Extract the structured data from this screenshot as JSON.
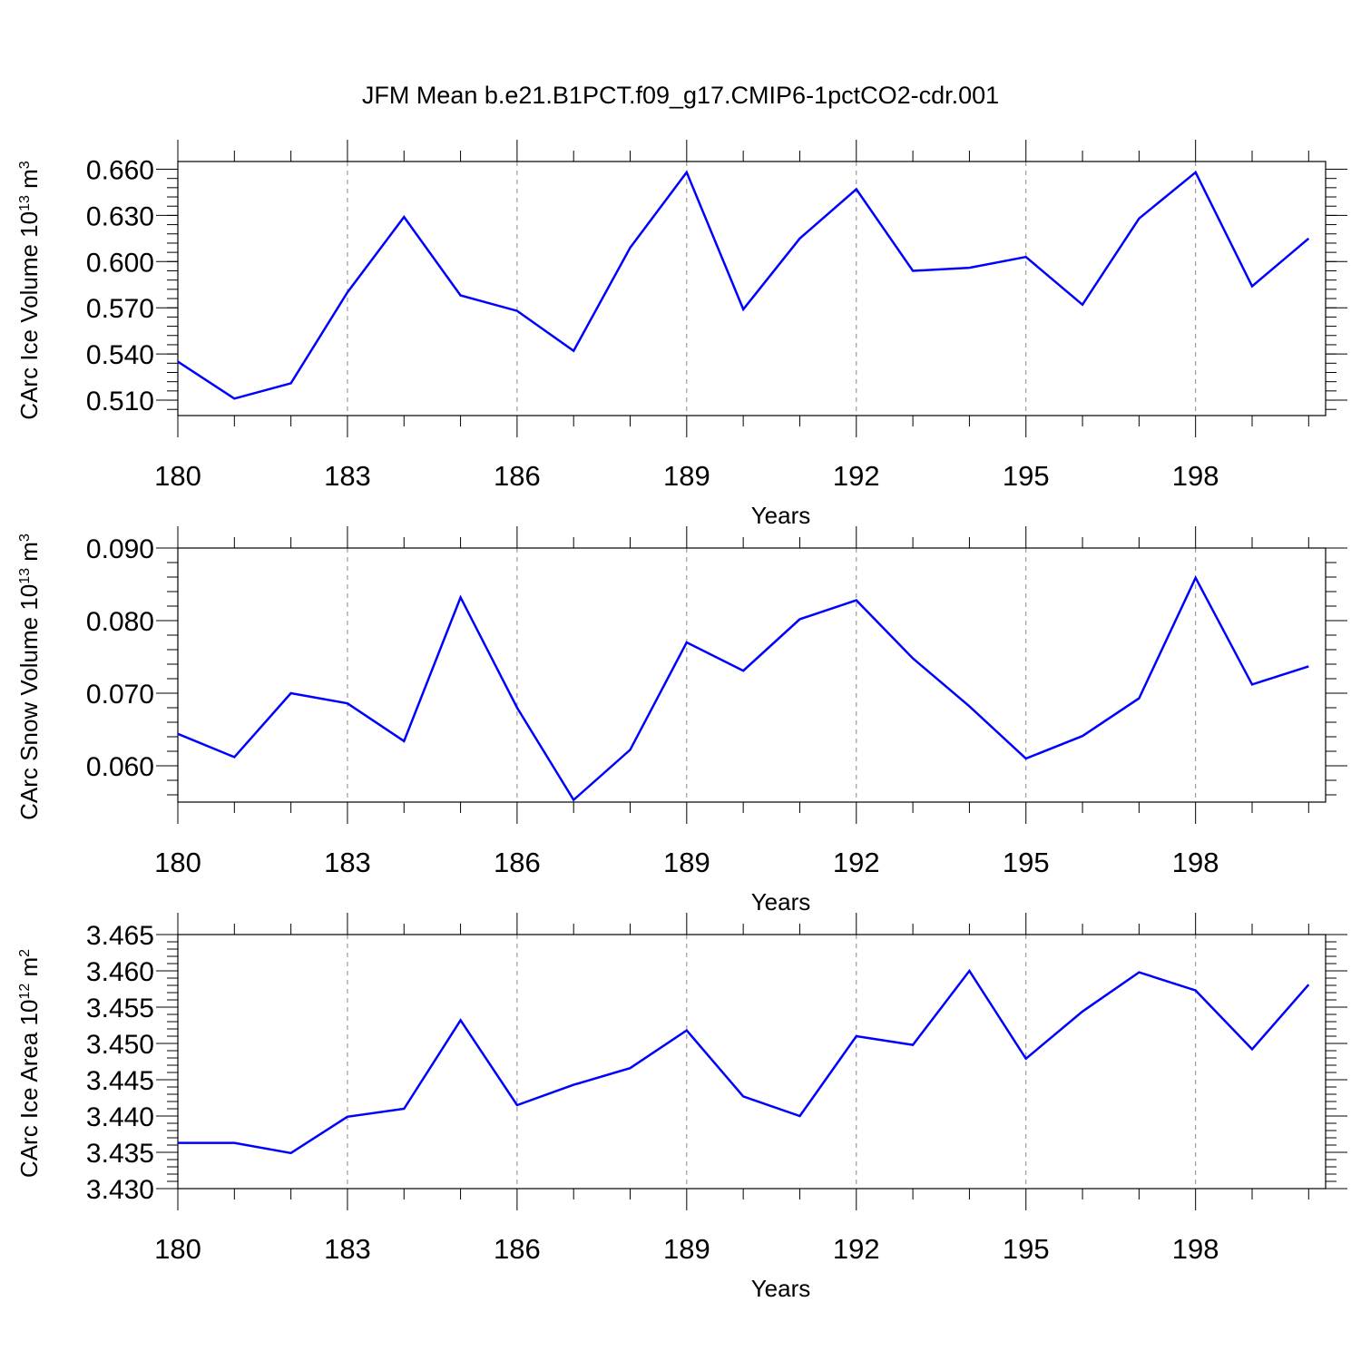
{
  "title": "JFM Mean b.e21.B1PCT.f09_g17.CMIP6-1pctCO2-cdr.001",
  "line_color": "#0000ff",
  "chart_data": [
    {
      "type": "line",
      "title": "",
      "ylabel": {
        "main": "CArc Ice Volume 10",
        "sup1": "13",
        "mid": " m",
        "sup2": "3"
      },
      "xlabel": "Years",
      "xlim": [
        180,
        200.3
      ],
      "xticks": [
        180,
        183,
        186,
        189,
        192,
        195,
        198
      ],
      "xtick_labels": [
        "180",
        "183",
        "186",
        "189",
        "192",
        "195",
        "198"
      ],
      "ylim": [
        0.5,
        0.665
      ],
      "yticks": [
        0.51,
        0.54,
        0.57,
        0.6,
        0.63,
        0.66
      ],
      "ytick_labels": [
        "0.510",
        "0.540",
        "0.570",
        "0.600",
        "0.630",
        "0.660"
      ],
      "grid": "vertical dashed at major x ticks",
      "x": [
        180,
        181,
        182,
        183,
        184,
        185,
        186,
        187,
        188,
        189,
        190,
        191,
        192,
        193,
        194,
        195,
        196,
        197,
        198,
        199,
        200
      ],
      "series": [
        {
          "values": [
            0.535,
            0.511,
            0.521,
            0.58,
            0.629,
            0.578,
            0.568,
            0.542,
            0.609,
            0.658,
            0.569,
            0.615,
            0.647,
            0.594,
            0.596,
            0.603,
            0.572,
            0.628,
            0.658,
            0.584,
            0.615
          ]
        }
      ]
    },
    {
      "type": "line",
      "title": "",
      "ylabel": {
        "main": "CArc Snow Volume 10",
        "sup1": "13",
        "mid": " m",
        "sup2": "3"
      },
      "xlabel": "Years",
      "xlim": [
        180,
        200.3
      ],
      "xticks": [
        180,
        183,
        186,
        189,
        192,
        195,
        198
      ],
      "xtick_labels": [
        "180",
        "183",
        "186",
        "189",
        "192",
        "195",
        "198"
      ],
      "ylim": [
        0.055,
        0.09
      ],
      "yticks": [
        0.06,
        0.07,
        0.08,
        0.09
      ],
      "ytick_labels": [
        "0.060",
        "0.070",
        "0.080",
        "0.090"
      ],
      "grid": "vertical dashed at major x ticks",
      "x": [
        180,
        181,
        182,
        183,
        184,
        185,
        186,
        187,
        188,
        189,
        190,
        191,
        192,
        193,
        194,
        195,
        196,
        197,
        198,
        199,
        200
      ],
      "series": [
        {
          "values": [
            0.0644,
            0.0612,
            0.07,
            0.0686,
            0.0634,
            0.0832,
            0.068,
            0.0553,
            0.0622,
            0.077,
            0.0731,
            0.0802,
            0.0828,
            0.0748,
            0.0682,
            0.061,
            0.0641,
            0.0693,
            0.0859,
            0.0712,
            0.0737
          ]
        }
      ]
    },
    {
      "type": "line",
      "title": "",
      "ylabel": {
        "main": "CArc Ice Area 10",
        "sup1": "12",
        "mid": " m",
        "sup2": "2"
      },
      "xlabel": "Years",
      "xlim": [
        180,
        200.3
      ],
      "xticks": [
        180,
        183,
        186,
        189,
        192,
        195,
        198
      ],
      "xtick_labels": [
        "180",
        "183",
        "186",
        "189",
        "192",
        "195",
        "198"
      ],
      "ylim": [
        3.43,
        3.465
      ],
      "yticks": [
        3.43,
        3.435,
        3.44,
        3.445,
        3.45,
        3.455,
        3.46,
        3.465
      ],
      "ytick_labels": [
        "3.430",
        "3.435",
        "3.440",
        "3.445",
        "3.450",
        "3.455",
        "3.460",
        "3.465"
      ],
      "grid": "vertical dashed at major x ticks",
      "x": [
        180,
        181,
        182,
        183,
        184,
        185,
        186,
        187,
        188,
        189,
        190,
        191,
        192,
        193,
        194,
        195,
        196,
        197,
        198,
        199,
        200
      ],
      "series": [
        {
          "values": [
            3.4363,
            3.4363,
            3.4349,
            3.4399,
            3.441,
            3.4532,
            3.4415,
            3.4443,
            3.4466,
            3.4518,
            3.4427,
            3.44,
            3.451,
            3.4498,
            3.46,
            3.4479,
            3.4544,
            3.4598,
            3.4573,
            3.4492,
            3.4581
          ]
        }
      ]
    }
  ]
}
